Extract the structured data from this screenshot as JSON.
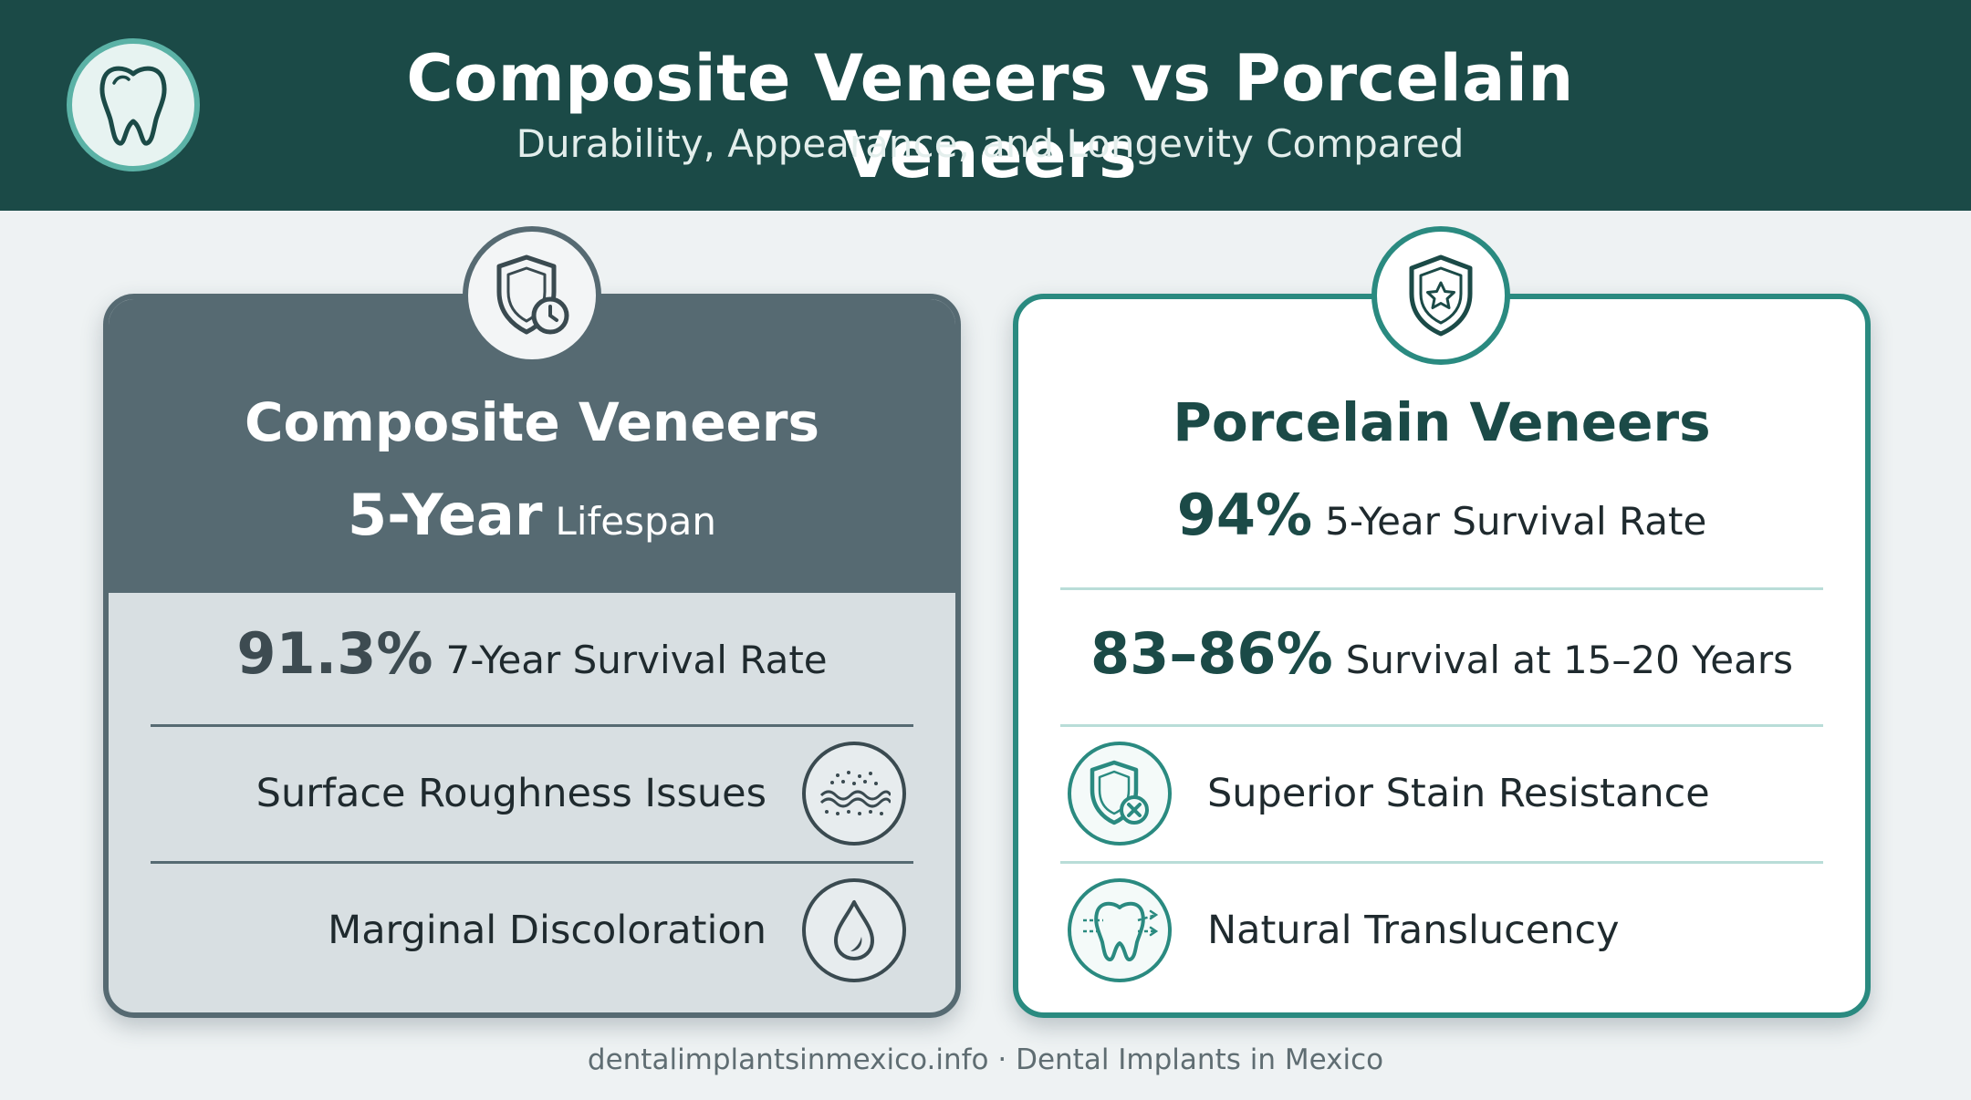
{
  "header": {
    "title": "Composite Veneers vs Porcelain Veneers",
    "subtitle": "Durability, Appearance, and Longevity Compared",
    "logo_icon": "tooth-icon"
  },
  "composite": {
    "badge_icon": "shield-clock-icon",
    "title": "Composite Veneers",
    "lifespan_value": "5-Year",
    "lifespan_label": "Lifespan",
    "survival_value": "91.3%",
    "survival_label": "7-Year Survival Rate",
    "features": [
      {
        "label": "Surface Roughness Issues",
        "icon": "rough-surface-icon"
      },
      {
        "label": "Marginal Discoloration",
        "icon": "droplet-icon"
      }
    ]
  },
  "porcelain": {
    "badge_icon": "shield-star-icon",
    "title": "Porcelain Veneers",
    "survival5_value": "94%",
    "survival5_label": "5-Year Survival Rate",
    "survival20_value": "83–86%",
    "survival20_label": "Survival at 15–20 Years",
    "features": [
      {
        "label": "Superior Stain Resistance",
        "icon": "shield-x-icon"
      },
      {
        "label": "Natural Translucency",
        "icon": "tooth-light-icon"
      }
    ]
  },
  "footer": {
    "text": "dentalimplantsinmexico.info · Dental Implants in Mexico"
  },
  "colors": {
    "header_bg": "#1b4a47",
    "accent_teal": "#2a8a80",
    "composite_slate": "#566a72",
    "composite_body": "#d8dfe2",
    "page_bg": "#eef2f3"
  }
}
